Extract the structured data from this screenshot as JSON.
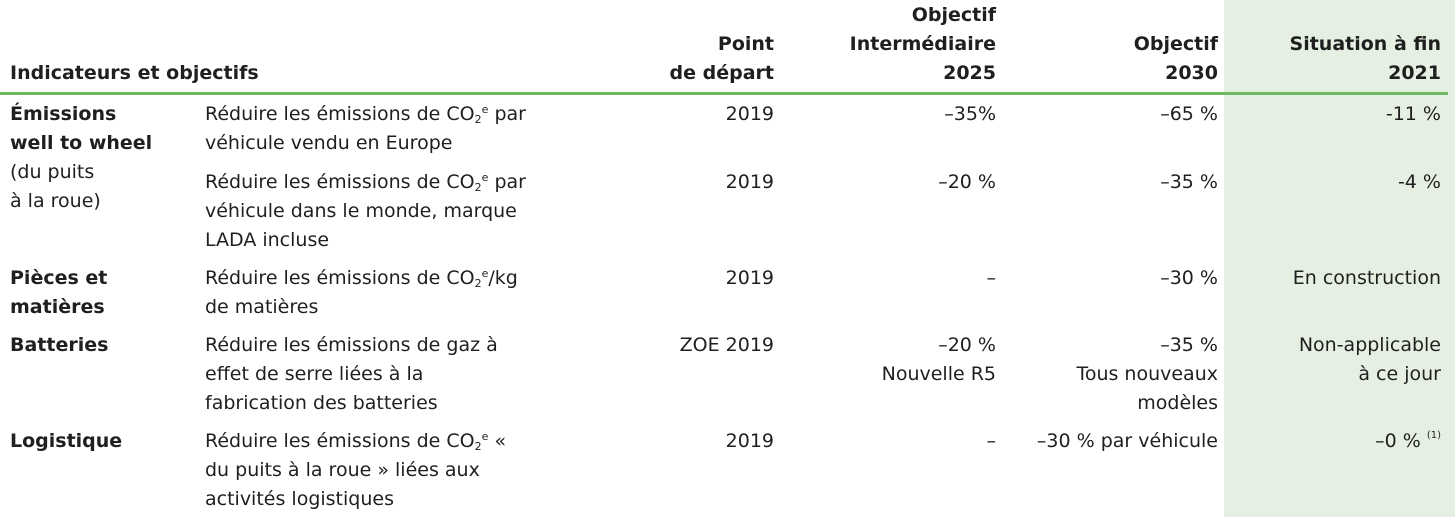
{
  "header": {
    "indicators": "Indicateurs et objectifs",
    "start_line1": "Point",
    "start_line2": "de départ",
    "inter_line1": "Objectif",
    "inter_line2": "Intermédiaire",
    "inter_line3": "2025",
    "obj_line1": "Objectif",
    "obj_line2": "2030",
    "sit_line1": "Situation à fin",
    "sit_line2": "2021"
  },
  "rows": {
    "wtw": {
      "cat1": "Émissions",
      "cat2": "well to wheel",
      "cat3": "(du puits",
      "cat4": "à la roue)",
      "a": {
        "desc_pre": "Réduire les émissions de CO",
        "desc_sub": "2",
        "desc_sup": "e",
        "desc_post": " par",
        "desc_line2": "véhicule vendu en Europe",
        "start": "2019",
        "inter": "–35%",
        "obj": "–65 %",
        "sit": "-11 %"
      },
      "b": {
        "desc_pre": "Réduire les émissions de CO",
        "desc_sub": "2",
        "desc_sup": "e",
        "desc_post": " par",
        "desc_line2": "véhicule dans le monde, marque",
        "desc_line3": "LADA incluse",
        "start": "2019",
        "inter": "–20 %",
        "obj": "–35 %",
        "sit": "-4 %"
      }
    },
    "parts": {
      "cat1": "Pièces et",
      "cat2": "matières",
      "desc_pre": "Réduire les émissions de CO",
      "desc_sub": "2",
      "desc_sup": "e",
      "desc_post": "/kg",
      "desc_line2": "de matières",
      "start": "2019",
      "inter": "–",
      "obj": "–30 %",
      "sit": "En construction"
    },
    "batteries": {
      "cat1": "Batteries",
      "desc_line1": "Réduire les émissions de gaz à",
      "desc_line2": "effet de serre liées à la",
      "desc_line3": "fabrication des batteries",
      "start": "ZOE 2019",
      "inter1": "–20 %",
      "inter2": "Nouvelle R5",
      "obj1": "–35 %",
      "obj2": "Tous nouveaux",
      "obj3": "modèles",
      "sit1": "Non-applicable",
      "sit2": "à ce jour"
    },
    "logistics": {
      "cat1": "Logistique",
      "desc_pre": "Réduire les émissions de CO",
      "desc_sub": "2",
      "desc_sup": "e",
      "desc_post": " «",
      "desc_line2": "du puits à la roue » liées aux",
      "desc_line3": "activités logistiques",
      "start": "2019",
      "inter": "–",
      "obj": "–30 % par véhicule",
      "sit": "–0 %",
      "sit_note": "(1)"
    }
  },
  "colors": {
    "rule": "#6dbb5e",
    "highlight_column": "#e6f0e2",
    "text": "#1f1f1f"
  }
}
